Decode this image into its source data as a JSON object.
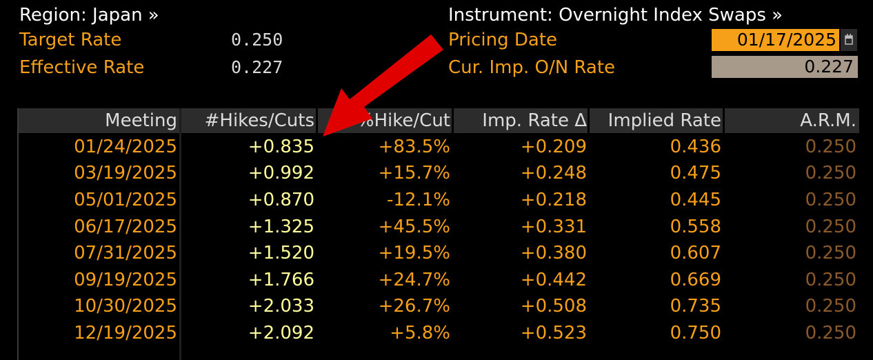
{
  "header": {
    "region_label": "Region: Japan »",
    "instrument_label": "Instrument: Overnight Index Swaps »",
    "target_rate_label": "Target Rate",
    "target_rate_value": "0.250",
    "effective_rate_label": "Effective Rate",
    "effective_rate_value": "0.227",
    "pricing_date_label": "Pricing Date",
    "pricing_date_value": "01/17/2025",
    "cur_imp_label": "Cur. Imp. O/N Rate",
    "cur_imp_value": "0.227"
  },
  "table": {
    "columns": [
      "Meeting",
      "#Hikes/Cuts",
      "%Hike/Cut",
      "Imp. Rate Δ",
      "Implied Rate",
      "A.R.M."
    ],
    "rows": [
      {
        "meeting": "01/24/2025",
        "hikes": "+0.835",
        "pct": "+83.5%",
        "delta": "+0.209",
        "implied": "0.436",
        "arm": "0.250"
      },
      {
        "meeting": "03/19/2025",
        "hikes": "+0.992",
        "pct": "+15.7%",
        "delta": "+0.248",
        "implied": "0.475",
        "arm": "0.250"
      },
      {
        "meeting": "05/01/2025",
        "hikes": "+0.870",
        "pct": "-12.1%",
        "delta": "+0.218",
        "implied": "0.445",
        "arm": "0.250"
      },
      {
        "meeting": "06/17/2025",
        "hikes": "+1.325",
        "pct": "+45.5%",
        "delta": "+0.331",
        "implied": "0.558",
        "arm": "0.250"
      },
      {
        "meeting": "07/31/2025",
        "hikes": "+1.520",
        "pct": "+19.5%",
        "delta": "+0.380",
        "implied": "0.607",
        "arm": "0.250"
      },
      {
        "meeting": "09/19/2025",
        "hikes": "+1.766",
        "pct": "+24.7%",
        "delta": "+0.442",
        "implied": "0.669",
        "arm": "0.250"
      },
      {
        "meeting": "10/30/2025",
        "hikes": "+2.033",
        "pct": "+26.7%",
        "delta": "+0.508",
        "implied": "0.735",
        "arm": "0.250"
      },
      {
        "meeting": "12/19/2025",
        "hikes": "+2.092",
        "pct": "+5.8%",
        "delta": "+0.523",
        "implied": "0.750",
        "arm": "0.250"
      }
    ]
  },
  "icons": {
    "calendar": "calendar-icon",
    "annotation": "red-arrow-annotation"
  },
  "colors": {
    "background": "#000000",
    "accent_orange": "#f6a01a",
    "hikes_yellow": "#ffff99",
    "arm_brown": "#8a5a2a",
    "arrow_red": "#e00000"
  }
}
